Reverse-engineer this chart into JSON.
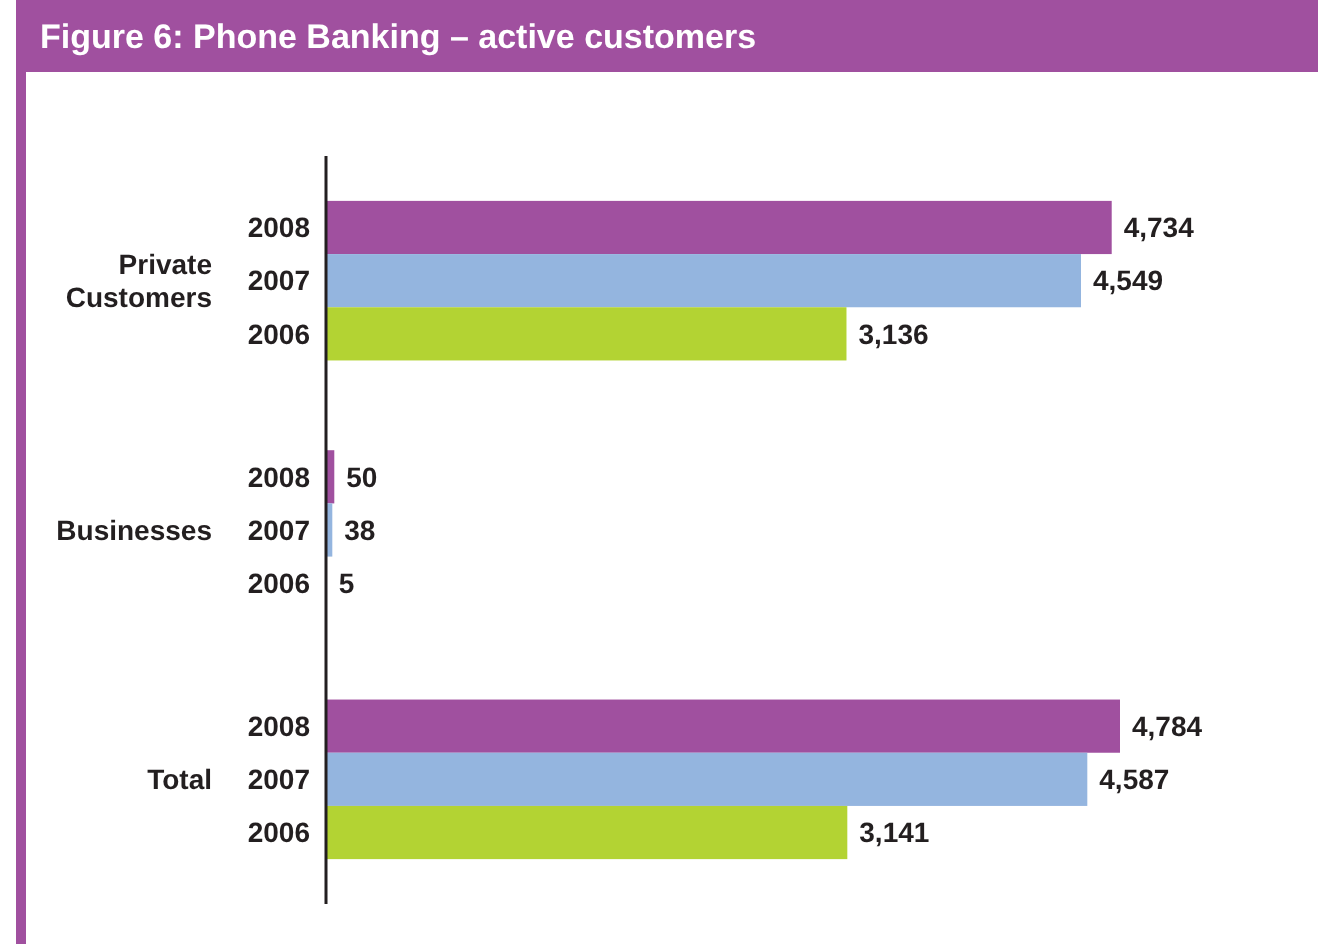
{
  "chart_data": {
    "type": "bar",
    "orientation": "horizontal",
    "title": "Figure 6: Phone Banking – active customers",
    "categories": [
      "Private Customers",
      "Businesses",
      "Total"
    ],
    "series": [
      {
        "name": "2008",
        "color": "#a0509f",
        "values": [
          4734,
          50,
          4784
        ],
        "value_labels": [
          "4,734",
          "50",
          "4,784"
        ]
      },
      {
        "name": "2007",
        "color": "#94b5df",
        "values": [
          4549,
          38,
          4587
        ],
        "value_labels": [
          "4,549",
          "38",
          "4,587"
        ]
      },
      {
        "name": "2006",
        "color": "#b3d333",
        "values": [
          3136,
          5,
          3141
        ],
        "value_labels": [
          "3,136",
          "5",
          "3,141"
        ]
      }
    ]
  }
}
